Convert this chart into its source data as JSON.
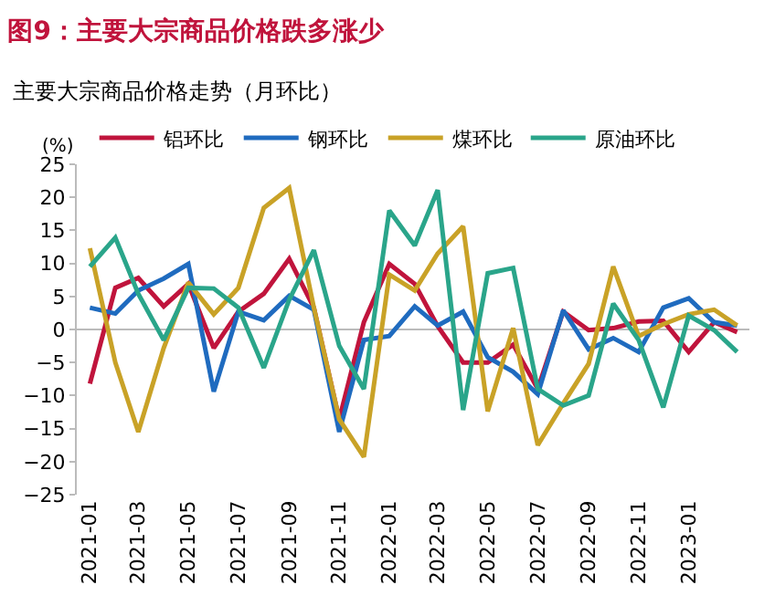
{
  "chart_data": {
    "type": "line",
    "title": "图9：主要大宗商品价格跌多涨少",
    "subtitle": "主要大宗商品价格走势（月环比）",
    "ylabel": "(%)",
    "x": [
      "2021-01",
      "2021-02",
      "2021-03",
      "2021-04",
      "2021-05",
      "2021-06",
      "2021-07",
      "2021-08",
      "2021-09",
      "2021-10",
      "2021-11",
      "2021-12",
      "2022-01",
      "2022-02",
      "2022-03",
      "2022-04",
      "2022-05",
      "2022-06",
      "2022-07",
      "2022-08",
      "2022-09",
      "2022-10",
      "2022-11",
      "2022-12",
      "2023-01",
      "2023-02",
      "2023-03"
    ],
    "series": [
      {
        "name": "铝环比",
        "color": "#c0143c",
        "values": [
          -8.2,
          6.3,
          7.8,
          3.5,
          6.9,
          -2.8,
          2.7,
          5.4,
          10.7,
          3.3,
          -13.6,
          1.1,
          9.9,
          6.9,
          0.5,
          -5,
          -5,
          -2.3,
          -9,
          2.7,
          -0.1,
          0.2,
          1.2,
          1.3,
          -3.4,
          1.1,
          -0.4
        ]
      },
      {
        "name": "钢环比",
        "color": "#1f6bbf",
        "values": [
          3.3,
          2.4,
          5.9,
          7.7,
          9.9,
          -9.4,
          2.7,
          1.4,
          5.1,
          3,
          -15.5,
          -1.6,
          -1,
          3.5,
          0.6,
          2.7,
          -4.2,
          -6.4,
          -9.8,
          2.9,
          -3,
          -1.3,
          -3.4,
          3.3,
          4.7,
          1.1,
          0.6
        ]
      },
      {
        "name": "煤环比",
        "color": "#c9a227",
        "values": [
          12.3,
          -5,
          -15.5,
          -2.8,
          7.1,
          2.3,
          6.3,
          18.4,
          21.4,
          3.3,
          -13.6,
          -19.3,
          8.3,
          5.9,
          11.5,
          15.6,
          -12.4,
          0.2,
          -17.5,
          -11.2,
          -5.2,
          9.5,
          -1,
          0.8,
          2.3,
          3,
          0.6
        ]
      },
      {
        "name": "原油环比",
        "color": "#2aa58a",
        "values": [
          9.5,
          13.9,
          5.4,
          -1.6,
          6.3,
          6.2,
          3.3,
          -5.8,
          4.5,
          12,
          -2.5,
          -9,
          18,
          12.7,
          21.1,
          -12.2,
          8.5,
          9.3,
          -9,
          -11.5,
          -10,
          3.9,
          -1.6,
          -11.8,
          2.1,
          -0.1,
          -3.4
        ]
      }
    ],
    "xlim": [
      "2020-12-16",
      "2023-03-16"
    ],
    "xticks": [
      {
        "value": "2021-01",
        "label": "2021-01"
      },
      {
        "value": "2021-03",
        "label": "2021-03"
      },
      {
        "value": "2021-05",
        "label": "2021-05"
      },
      {
        "value": "2021-07",
        "label": "2021-07"
      },
      {
        "value": "2021-09",
        "label": "2021-09"
      },
      {
        "value": "2021-11",
        "label": "2021-11"
      },
      {
        "value": "2022-01",
        "label": "2022-01"
      },
      {
        "value": "2022-03",
        "label": "2022-03"
      },
      {
        "value": "2022-05",
        "label": "2022-05"
      },
      {
        "value": "2022-07",
        "label": "2022-07"
      },
      {
        "value": "2022-09",
        "label": "2022-09"
      },
      {
        "value": "2022-11",
        "label": "2022-11"
      },
      {
        "value": "2023-01",
        "label": "2023-01"
      }
    ],
    "ylim": [
      -25,
      25
    ],
    "yticks": [
      -25,
      -20,
      -15,
      -10,
      -5,
      0,
      5,
      10,
      15,
      20,
      25
    ],
    "ref_lines": [
      {
        "axis": "y",
        "value": 0,
        "color": "#bbbbbb"
      }
    ],
    "grid": false,
    "legend": "top",
    "marker": "none",
    "line_style": "solid"
  }
}
